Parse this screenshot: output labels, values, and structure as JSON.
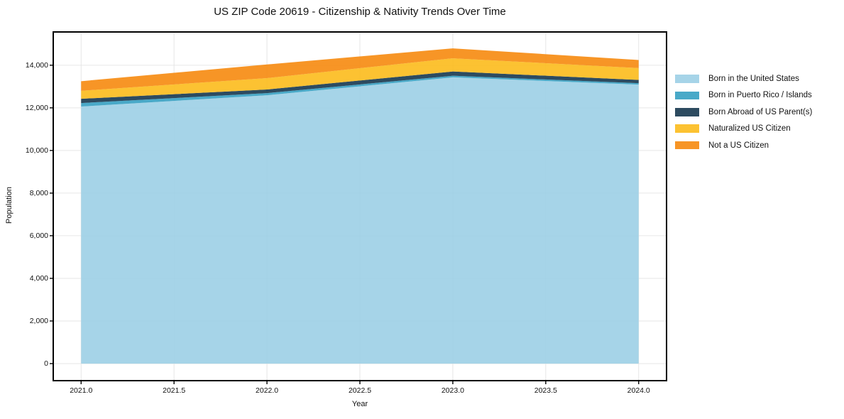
{
  "chart_data": {
    "type": "area",
    "stacked": true,
    "title": "US ZIP Code 20619 - Citizenship & Nativity Trends Over Time",
    "xlabel": "Year",
    "ylabel": "Population",
    "x": [
      2021,
      2022,
      2023,
      2024
    ],
    "series": [
      {
        "name": "Born in the United States",
        "color": "#9ccfe6",
        "values": [
          12060,
          12590,
          13430,
          13090
        ]
      },
      {
        "name": "Born in Puerto Rico / Islands",
        "color": "#35a0c2",
        "values": [
          165,
          100,
          75,
          65
        ]
      },
      {
        "name": "Born Abroad of US Parent(s)",
        "color": "#16374f",
        "values": [
          200,
          170,
          200,
          155
        ]
      },
      {
        "name": "Naturalized US Citizen",
        "color": "#fcbb1c",
        "values": [
          375,
          535,
          620,
          555
        ]
      },
      {
        "name": "Not a US Citizen",
        "color": "#f68a0e",
        "values": [
          450,
          640,
          465,
          380
        ]
      }
    ],
    "xlim": [
      2020.85,
      2024.15
    ],
    "ylim": [
      -800,
      15560
    ],
    "xticks": [
      2021.0,
      2021.5,
      2022.0,
      2022.5,
      2023.0,
      2023.5,
      2024.0
    ],
    "xtick_labels": [
      "2021.0",
      "2021.5",
      "2022.0",
      "2022.5",
      "2023.0",
      "2023.5",
      "2024.0"
    ],
    "yticks": [
      0,
      2000,
      4000,
      6000,
      8000,
      10000,
      12000,
      14000
    ],
    "ytick_labels": [
      "0",
      "2,000",
      "4,000",
      "6,000",
      "8,000",
      "10,000",
      "12,000",
      "14,000"
    ],
    "grid": true,
    "legend_position": "right",
    "colors": {
      "grid": "#e6e6e6",
      "spine": "#000000",
      "background": "#ffffff"
    }
  }
}
